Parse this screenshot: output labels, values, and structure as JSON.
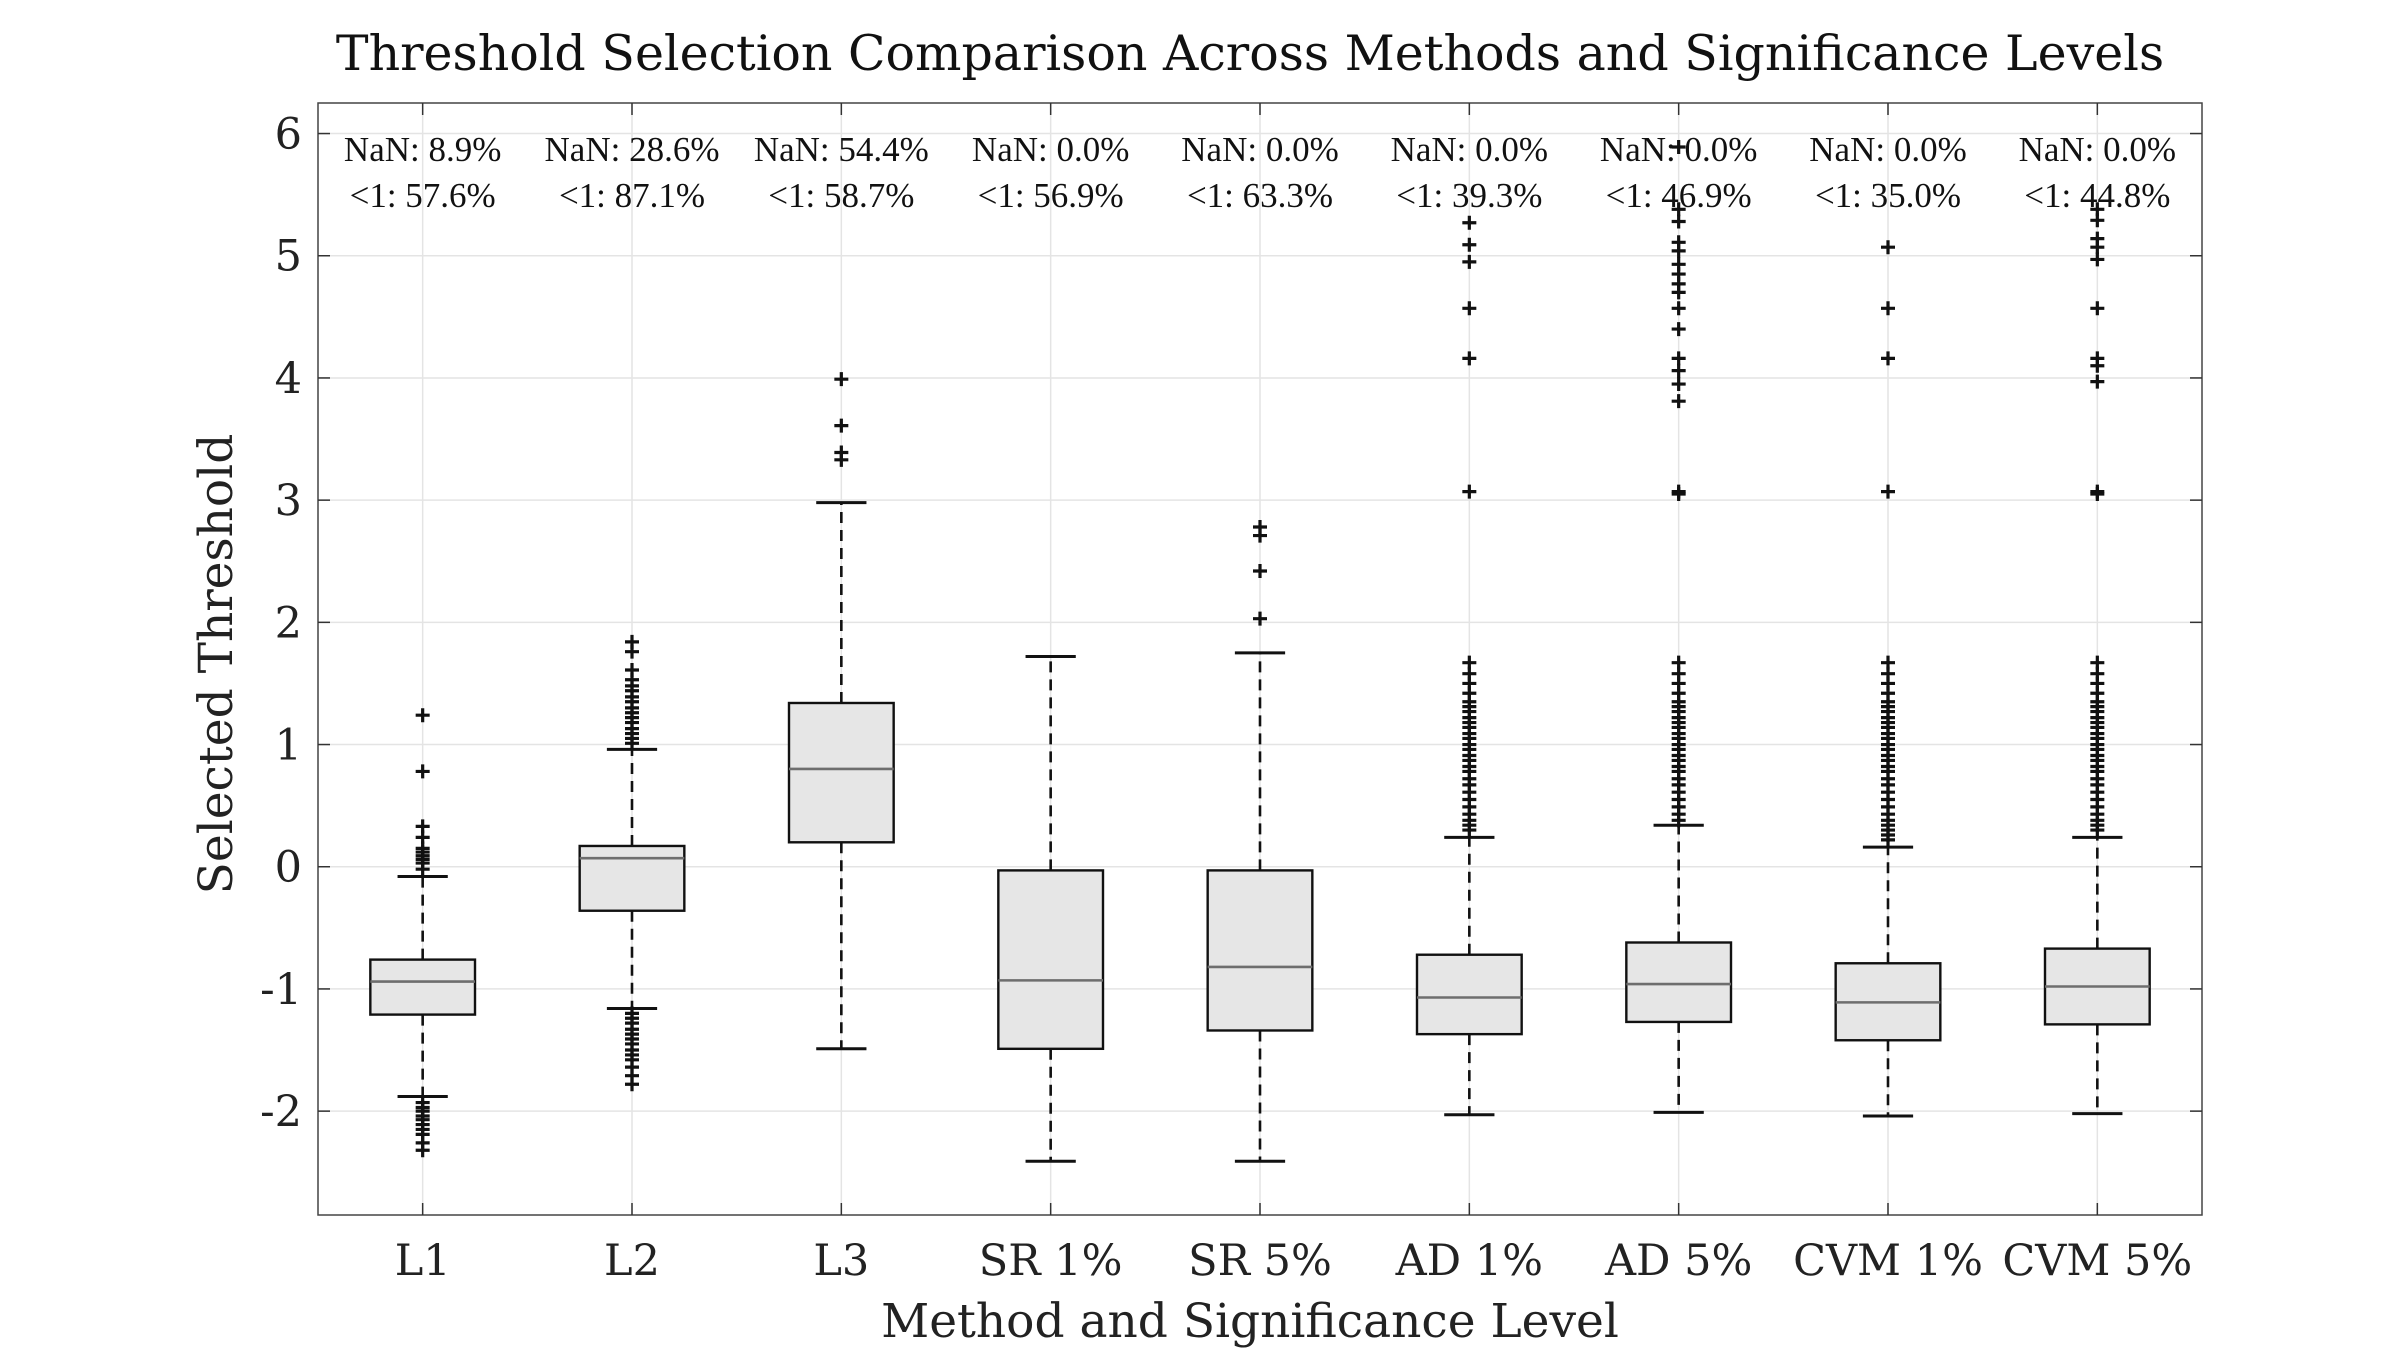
{
  "chart_data": {
    "type": "box",
    "title": "Threshold Selection Comparison Across Methods and Significance Levels",
    "xlabel": "Method and Significance Level",
    "ylabel": "Selected Threshold",
    "ylim": [
      -2.85,
      6.25
    ],
    "yticks": [
      -2,
      -1,
      0,
      1,
      2,
      3,
      4,
      5,
      6
    ],
    "ytick_labels": [
      "-2",
      "-1",
      "0",
      "1",
      "2",
      "3",
      "4",
      "5",
      "6"
    ],
    "grid": true,
    "categories": [
      "L1",
      "L2",
      "L3",
      "SR 1%",
      "SR 5%",
      "AD 1%",
      "AD 5%",
      "CVM 1%",
      "CVM 5%"
    ],
    "boxes": [
      {
        "q1": -1.21,
        "median": -0.94,
        "q3": -0.76,
        "whisker_low": -1.88,
        "whisker_high": -0.08,
        "outliers": [
          1.24,
          0.78,
          0.33,
          0.24,
          0.15,
          0.12,
          0.09,
          0.06,
          0.03,
          -0.02,
          -1.93,
          -1.97,
          -2.0,
          -2.04,
          -2.07,
          -2.11,
          -2.15,
          -2.19,
          -2.26,
          -2.32
        ]
      },
      {
        "q1": -0.36,
        "median": 0.07,
        "q3": 0.17,
        "whisker_low": -1.16,
        "whisker_high": 0.96,
        "outliers": [
          1.84,
          1.76,
          1.61,
          1.53,
          1.48,
          1.44,
          1.39,
          1.35,
          1.3,
          1.26,
          1.22,
          1.18,
          1.13,
          1.09,
          1.05,
          1.01,
          -1.2,
          -1.24,
          -1.28,
          -1.33,
          -1.37,
          -1.41,
          -1.45,
          -1.5,
          -1.54,
          -1.58,
          -1.64,
          -1.71,
          -1.78
        ]
      },
      {
        "q1": 0.2,
        "median": 0.8,
        "q3": 1.34,
        "whisker_low": -1.49,
        "whisker_high": 2.98,
        "outliers": [
          3.99,
          3.61,
          3.39,
          3.33
        ]
      },
      {
        "q1": -1.49,
        "median": -0.93,
        "q3": -0.03,
        "whisker_low": -2.41,
        "whisker_high": 1.72,
        "outliers": []
      },
      {
        "q1": -1.34,
        "median": -0.82,
        "q3": -0.03,
        "whisker_low": -2.41,
        "whisker_high": 1.75,
        "outliers": [
          2.78,
          2.71,
          2.42,
          2.03
        ]
      },
      {
        "q1": -1.37,
        "median": -1.07,
        "q3": -0.72,
        "whisker_low": -2.03,
        "whisker_high": 0.24,
        "outliers": [
          5.27,
          5.09,
          4.95,
          4.57,
          4.16,
          3.07,
          1.67,
          1.58,
          1.5,
          1.42,
          1.35,
          1.31,
          1.27,
          1.22,
          1.18,
          1.14,
          1.09,
          1.05,
          1.0,
          0.96,
          0.91,
          0.87,
          0.82,
          0.78,
          0.72,
          0.67,
          0.61,
          0.55,
          0.49,
          0.43,
          0.38,
          0.34,
          0.3
        ]
      },
      {
        "q1": -1.27,
        "median": -0.96,
        "q3": -0.62,
        "whisker_low": -2.01,
        "whisker_high": 0.34,
        "outliers": [
          5.89,
          5.38,
          5.28,
          5.11,
          5.04,
          4.93,
          4.85,
          4.77,
          4.7,
          4.57,
          4.4,
          4.16,
          4.06,
          3.95,
          3.81,
          3.07,
          3.05,
          1.67,
          1.58,
          1.5,
          1.42,
          1.35,
          1.31,
          1.27,
          1.22,
          1.18,
          1.14,
          1.09,
          1.05,
          1.0,
          0.96,
          0.91,
          0.87,
          0.82,
          0.78,
          0.72,
          0.67,
          0.61,
          0.55,
          0.49,
          0.43,
          0.38
        ]
      },
      {
        "q1": -1.42,
        "median": -1.11,
        "q3": -0.79,
        "whisker_low": -2.04,
        "whisker_high": 0.16,
        "outliers": [
          5.07,
          4.57,
          4.16,
          3.07,
          1.67,
          1.58,
          1.5,
          1.42,
          1.35,
          1.31,
          1.27,
          1.22,
          1.18,
          1.14,
          1.09,
          1.05,
          1.0,
          0.96,
          0.91,
          0.87,
          0.82,
          0.78,
          0.72,
          0.67,
          0.61,
          0.55,
          0.49,
          0.43,
          0.38,
          0.34,
          0.3,
          0.26,
          0.22
        ]
      },
      {
        "q1": -1.29,
        "median": -0.98,
        "q3": -0.67,
        "whisker_low": -2.02,
        "whisker_high": 0.24,
        "outliers": [
          5.38,
          5.29,
          5.14,
          5.07,
          4.97,
          4.57,
          4.16,
          4.1,
          3.97,
          3.07,
          3.05,
          1.67,
          1.58,
          1.5,
          1.42,
          1.35,
          1.31,
          1.27,
          1.22,
          1.18,
          1.14,
          1.09,
          1.05,
          1.0,
          0.96,
          0.91,
          0.87,
          0.82,
          0.78,
          0.72,
          0.67,
          0.61,
          0.55,
          0.49,
          0.43,
          0.38,
          0.34,
          0.3
        ]
      }
    ],
    "annotations": [
      {
        "nan": "NaN: 8.9%",
        "below1": "<1: 57.6%"
      },
      {
        "nan": "NaN: 28.6%",
        "below1": "<1: 87.1%"
      },
      {
        "nan": "NaN: 54.4%",
        "below1": "<1: 58.7%"
      },
      {
        "nan": "NaN: 0.0%",
        "below1": "<1: 56.9%"
      },
      {
        "nan": "NaN: 0.0%",
        "below1": "<1: 63.3%"
      },
      {
        "nan": "NaN: 0.0%",
        "below1": "<1: 39.3%"
      },
      {
        "nan": "NaN: 0.0%",
        "below1": "<1: 46.9%"
      },
      {
        "nan": "NaN: 0.0%",
        "below1": "<1: 35.0%"
      },
      {
        "nan": "NaN: 0.0%",
        "below1": "<1: 44.8%"
      }
    ],
    "colors": {
      "box_fill": "#e6e6e6",
      "box_edge": "#111111",
      "median": "#6e6e6e",
      "whisker": "#111111",
      "outlier": "#111111",
      "grid": "#e4e4e4",
      "axis": "#333333"
    }
  }
}
